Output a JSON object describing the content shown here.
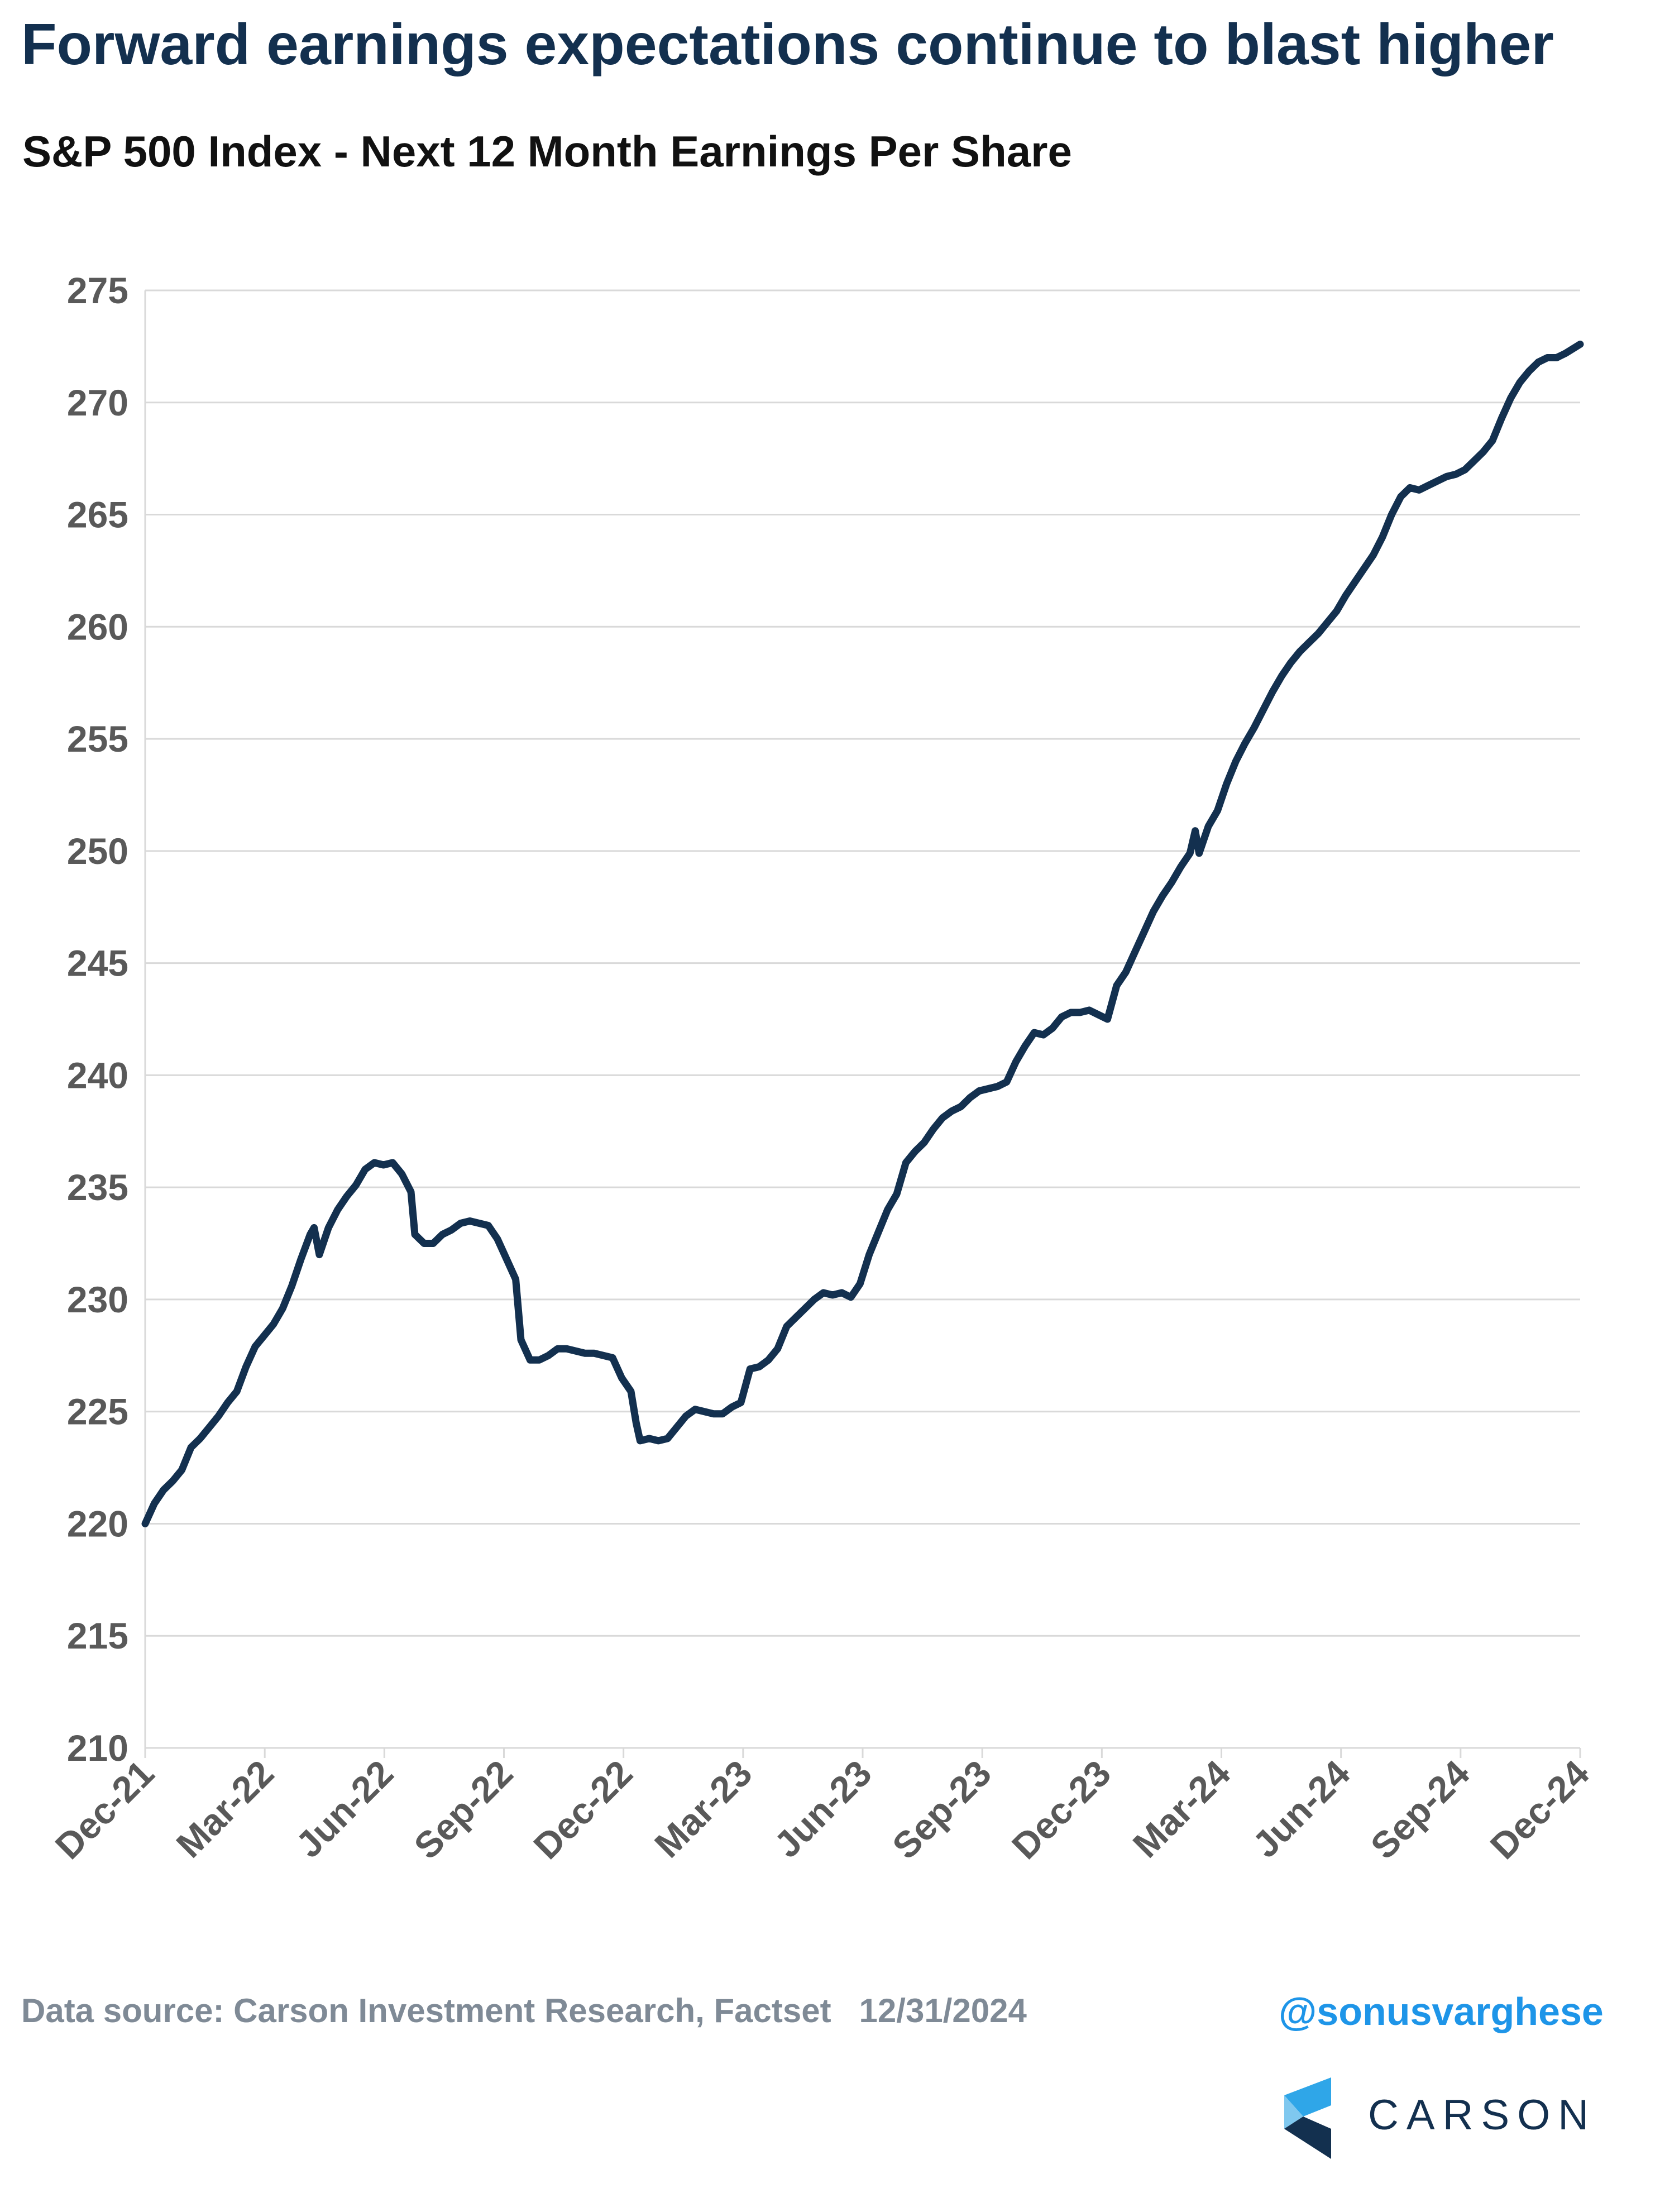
{
  "header": {
    "title": "Forward earnings expectations continue to blast higher",
    "subtitle": "S&P 500 Index - Next 12 Month Earnings Per Share"
  },
  "footer": {
    "source": "Data source: Carson Investment Research, Factset",
    "date": "12/31/2024",
    "handle": "@sonusvarghese",
    "brand": "CARSON"
  },
  "colors": {
    "line": "#13304f",
    "grid": "#d9d9d9",
    "tick_text": "#595959",
    "handle": "#1e95e8"
  },
  "chart_data": {
    "type": "line",
    "title": "S&P 500 Index - Next 12 Month Earnings Per Share",
    "xlabel": "",
    "ylabel": "",
    "ylim": [
      210,
      275
    ],
    "yticks": [
      210,
      215,
      220,
      225,
      230,
      235,
      240,
      245,
      250,
      255,
      260,
      265,
      270,
      275
    ],
    "xticks": [
      "Dec-21",
      "Mar-22",
      "Jun-22",
      "Sep-22",
      "Dec-22",
      "Mar-23",
      "Jun-23",
      "Sep-23",
      "Dec-23",
      "Mar-24",
      "Jun-24",
      "Sep-24",
      "Dec-24"
    ],
    "grid": true,
    "legend": "none",
    "series": [
      {
        "values": [
          [
            "2021-12-31",
            220.0
          ],
          [
            "2022-01-07",
            220.9
          ],
          [
            "2022-01-14",
            221.5
          ],
          [
            "2022-01-21",
            221.9
          ],
          [
            "2022-01-28",
            222.4
          ],
          [
            "2022-02-04",
            223.4
          ],
          [
            "2022-02-11",
            223.8
          ],
          [
            "2022-02-18",
            224.3
          ],
          [
            "2022-02-25",
            224.8
          ],
          [
            "2022-03-04",
            225.4
          ],
          [
            "2022-03-11",
            225.9
          ],
          [
            "2022-03-18",
            227.0
          ],
          [
            "2022-03-25",
            227.9
          ],
          [
            "2022-04-01",
            228.4
          ],
          [
            "2022-04-08",
            228.9
          ],
          [
            "2022-04-15",
            229.6
          ],
          [
            "2022-04-22",
            230.6
          ],
          [
            "2022-04-29",
            231.8
          ],
          [
            "2022-05-06",
            232.9
          ],
          [
            "2022-05-09",
            233.2
          ],
          [
            "2022-05-13",
            232.0
          ],
          [
            "2022-05-20",
            233.2
          ],
          [
            "2022-05-27",
            234.0
          ],
          [
            "2022-06-03",
            234.6
          ],
          [
            "2022-06-10",
            235.1
          ],
          [
            "2022-06-17",
            235.8
          ],
          [
            "2022-06-24",
            236.1
          ],
          [
            "2022-07-01",
            236.0
          ],
          [
            "2022-07-08",
            236.1
          ],
          [
            "2022-07-15",
            235.6
          ],
          [
            "2022-07-22",
            234.8
          ],
          [
            "2022-07-25",
            232.9
          ],
          [
            "2022-08-01",
            232.5
          ],
          [
            "2022-08-08",
            232.5
          ],
          [
            "2022-08-15",
            232.9
          ],
          [
            "2022-08-22",
            233.1
          ],
          [
            "2022-08-29",
            233.4
          ],
          [
            "2022-09-05",
            233.5
          ],
          [
            "2022-09-12",
            233.4
          ],
          [
            "2022-09-19",
            233.3
          ],
          [
            "2022-09-26",
            232.7
          ],
          [
            "2022-10-03",
            231.8
          ],
          [
            "2022-10-10",
            230.9
          ],
          [
            "2022-10-14",
            228.2
          ],
          [
            "2022-10-21",
            227.3
          ],
          [
            "2022-10-28",
            227.3
          ],
          [
            "2022-11-04",
            227.5
          ],
          [
            "2022-11-11",
            227.8
          ],
          [
            "2022-11-18",
            227.8
          ],
          [
            "2022-11-25",
            227.7
          ],
          [
            "2022-12-02",
            227.6
          ],
          [
            "2022-12-09",
            227.6
          ],
          [
            "2022-12-16",
            227.5
          ],
          [
            "2022-12-23",
            227.4
          ],
          [
            "2022-12-30",
            226.5
          ],
          [
            "2023-01-06",
            225.9
          ],
          [
            "2023-01-10",
            224.5
          ],
          [
            "2023-01-13",
            223.7
          ],
          [
            "2023-01-20",
            223.8
          ],
          [
            "2023-01-27",
            223.7
          ],
          [
            "2023-02-03",
            223.8
          ],
          [
            "2023-02-10",
            224.3
          ],
          [
            "2023-02-17",
            224.8
          ],
          [
            "2023-02-24",
            225.1
          ],
          [
            "2023-03-03",
            225.0
          ],
          [
            "2023-03-10",
            224.9
          ],
          [
            "2023-03-17",
            224.9
          ],
          [
            "2023-03-24",
            225.2
          ],
          [
            "2023-03-31",
            225.4
          ],
          [
            "2023-04-07",
            226.9
          ],
          [
            "2023-04-14",
            227.0
          ],
          [
            "2023-04-21",
            227.3
          ],
          [
            "2023-04-28",
            227.8
          ],
          [
            "2023-05-05",
            228.8
          ],
          [
            "2023-05-12",
            229.2
          ],
          [
            "2023-05-19",
            229.6
          ],
          [
            "2023-05-26",
            230.0
          ],
          [
            "2023-06-02",
            230.3
          ],
          [
            "2023-06-09",
            230.2
          ],
          [
            "2023-06-16",
            230.3
          ],
          [
            "2023-06-23",
            230.1
          ],
          [
            "2023-06-30",
            230.7
          ],
          [
            "2023-07-07",
            232.0
          ],
          [
            "2023-07-14",
            233.0
          ],
          [
            "2023-07-21",
            234.0
          ],
          [
            "2023-07-28",
            234.7
          ],
          [
            "2023-08-04",
            236.1
          ],
          [
            "2023-08-11",
            236.6
          ],
          [
            "2023-08-18",
            237.0
          ],
          [
            "2023-08-25",
            237.6
          ],
          [
            "2023-09-01",
            238.1
          ],
          [
            "2023-09-08",
            238.4
          ],
          [
            "2023-09-15",
            238.6
          ],
          [
            "2023-09-22",
            239.0
          ],
          [
            "2023-09-29",
            239.3
          ],
          [
            "2023-10-06",
            239.4
          ],
          [
            "2023-10-13",
            239.5
          ],
          [
            "2023-10-20",
            239.7
          ],
          [
            "2023-10-27",
            240.6
          ],
          [
            "2023-11-03",
            241.3
          ],
          [
            "2023-11-10",
            241.9
          ],
          [
            "2023-11-17",
            241.8
          ],
          [
            "2023-11-24",
            242.1
          ],
          [
            "2023-12-01",
            242.6
          ],
          [
            "2023-12-08",
            242.8
          ],
          [
            "2023-12-15",
            242.8
          ],
          [
            "2023-12-22",
            242.9
          ],
          [
            "2023-12-29",
            242.7
          ],
          [
            "2024-01-05",
            242.5
          ],
          [
            "2024-01-12",
            244.0
          ],
          [
            "2024-01-19",
            244.6
          ],
          [
            "2024-01-26",
            245.5
          ],
          [
            "2024-02-02",
            246.4
          ],
          [
            "2024-02-09",
            247.3
          ],
          [
            "2024-02-16",
            248.0
          ],
          [
            "2024-02-23",
            248.6
          ],
          [
            "2024-03-01",
            249.3
          ],
          [
            "2024-03-08",
            249.9
          ],
          [
            "2024-03-12",
            250.9
          ],
          [
            "2024-03-15",
            249.9
          ],
          [
            "2024-03-22",
            251.1
          ],
          [
            "2024-03-29",
            251.8
          ],
          [
            "2024-04-05",
            253.0
          ],
          [
            "2024-04-12",
            254.0
          ],
          [
            "2024-04-19",
            254.8
          ],
          [
            "2024-04-26",
            255.5
          ],
          [
            "2024-05-03",
            256.3
          ],
          [
            "2024-05-10",
            257.1
          ],
          [
            "2024-05-17",
            257.8
          ],
          [
            "2024-05-24",
            258.4
          ],
          [
            "2024-05-31",
            258.9
          ],
          [
            "2024-06-07",
            259.3
          ],
          [
            "2024-06-14",
            259.7
          ],
          [
            "2024-06-21",
            260.2
          ],
          [
            "2024-06-28",
            260.7
          ],
          [
            "2024-07-05",
            261.4
          ],
          [
            "2024-07-12",
            262.0
          ],
          [
            "2024-07-19",
            262.6
          ],
          [
            "2024-07-26",
            263.2
          ],
          [
            "2024-08-02",
            264.0
          ],
          [
            "2024-08-09",
            265.0
          ],
          [
            "2024-08-16",
            265.8
          ],
          [
            "2024-08-23",
            266.2
          ],
          [
            "2024-08-30",
            266.1
          ],
          [
            "2024-09-06",
            266.3
          ],
          [
            "2024-09-13",
            266.5
          ],
          [
            "2024-09-20",
            266.7
          ],
          [
            "2024-09-27",
            266.8
          ],
          [
            "2024-10-04",
            267.0
          ],
          [
            "2024-10-11",
            267.4
          ],
          [
            "2024-10-18",
            267.8
          ],
          [
            "2024-10-25",
            268.3
          ],
          [
            "2024-11-01",
            269.3
          ],
          [
            "2024-11-08",
            270.2
          ],
          [
            "2024-11-15",
            270.9
          ],
          [
            "2024-11-22",
            271.4
          ],
          [
            "2024-11-29",
            271.8
          ],
          [
            "2024-12-06",
            272.0
          ],
          [
            "2024-12-13",
            272.0
          ],
          [
            "2024-12-20",
            272.2
          ],
          [
            "2024-12-31",
            272.6
          ]
        ]
      }
    ]
  }
}
